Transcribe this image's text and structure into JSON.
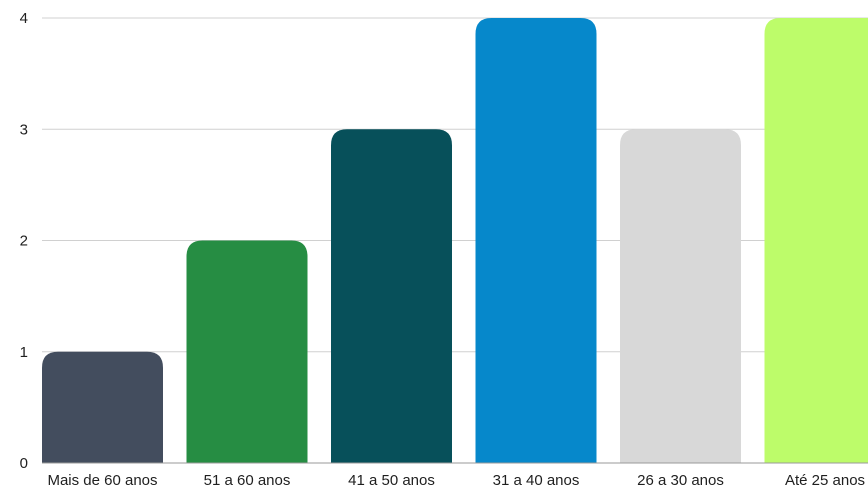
{
  "chart_data": {
    "type": "bar",
    "categories": [
      "Mais de 60 anos",
      "51 a 60 anos",
      "41 a 50 anos",
      "31 a 40 anos",
      "26 a 30 anos",
      "Até 25 anos"
    ],
    "values": [
      1,
      2,
      3,
      4,
      3,
      4
    ],
    "colors": [
      "#434d5e",
      "#268d43",
      "#07505a",
      "#0688cb",
      "#d8d8d8",
      "#bdfc6a"
    ],
    "yticks": [
      0,
      1,
      2,
      3,
      4
    ],
    "ylim": [
      0,
      4
    ],
    "title": "",
    "xlabel": "",
    "ylabel": "",
    "grid": true,
    "gridline_color": "#d0d0d0",
    "axis_color": "#9a9a9a"
  }
}
